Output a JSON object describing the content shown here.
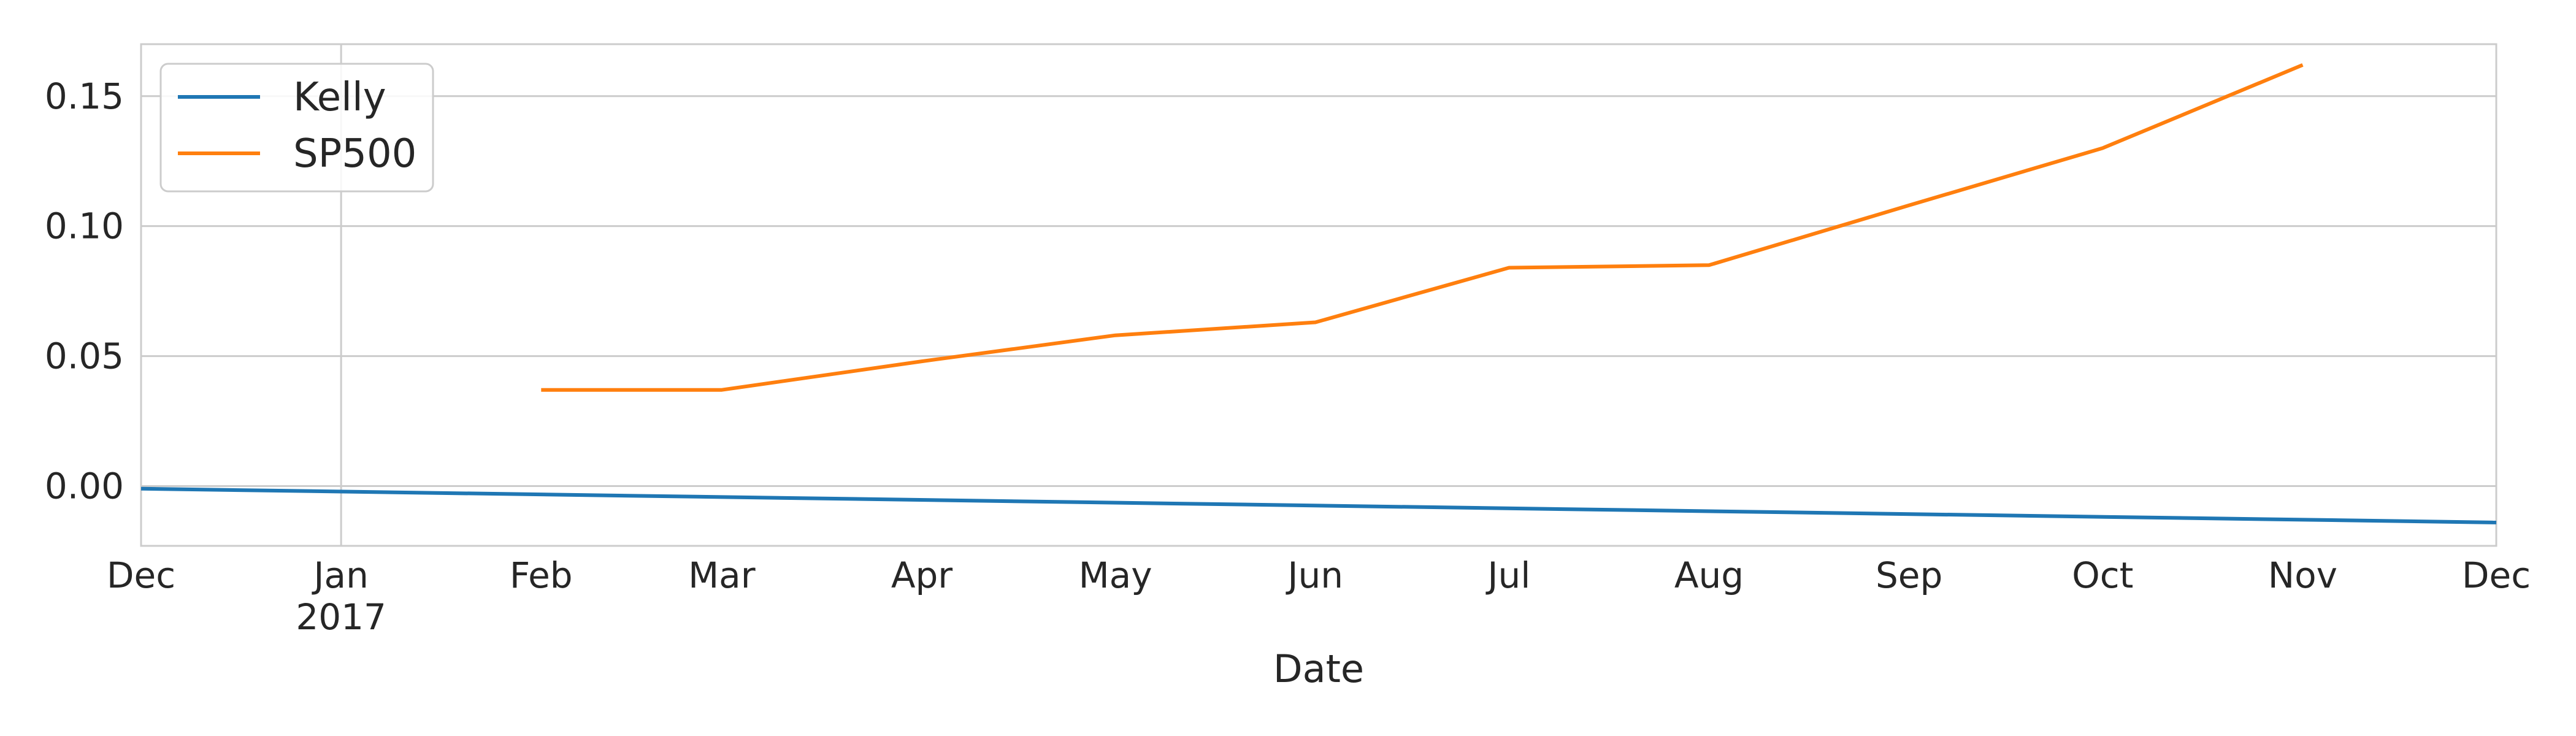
{
  "chart_data": {
    "type": "line",
    "title": "",
    "xlabel": "Date",
    "ylabel": "",
    "x_axis": {
      "type": "date",
      "range": [
        "2016-12-01",
        "2017-12-01"
      ],
      "ticks": [
        {
          "date": "2016-12-01",
          "label": "Dec",
          "sublabel": ""
        },
        {
          "date": "2017-01-01",
          "label": "Jan",
          "sublabel": "2017"
        },
        {
          "date": "2017-02-01",
          "label": "Feb",
          "sublabel": ""
        },
        {
          "date": "2017-03-01",
          "label": "Mar",
          "sublabel": ""
        },
        {
          "date": "2017-04-01",
          "label": "Apr",
          "sublabel": ""
        },
        {
          "date": "2017-05-01",
          "label": "May",
          "sublabel": ""
        },
        {
          "date": "2017-06-01",
          "label": "Jun",
          "sublabel": ""
        },
        {
          "date": "2017-07-01",
          "label": "Jul",
          "sublabel": ""
        },
        {
          "date": "2017-08-01",
          "label": "Aug",
          "sublabel": ""
        },
        {
          "date": "2017-09-01",
          "label": "Sep",
          "sublabel": ""
        },
        {
          "date": "2017-10-01",
          "label": "Oct",
          "sublabel": ""
        },
        {
          "date": "2017-11-01",
          "label": "Nov",
          "sublabel": ""
        },
        {
          "date": "2017-12-01",
          "label": "Dec",
          "sublabel": ""
        }
      ]
    },
    "y_axis": {
      "range": [
        -0.023,
        0.17
      ],
      "ticks": [
        {
          "value": 0.0,
          "label": "0.00"
        },
        {
          "value": 0.05,
          "label": "0.05"
        },
        {
          "value": 0.1,
          "label": "0.10"
        },
        {
          "value": 0.15,
          "label": "0.15"
        }
      ]
    },
    "grid": true,
    "legend": {
      "position": "top-left"
    },
    "series": [
      {
        "name": "Kelly",
        "color": "#1f77b4",
        "points": [
          {
            "x": "2016-12-01",
            "y": -0.001
          },
          {
            "x": "2017-12-01",
            "y": -0.014
          }
        ]
      },
      {
        "name": "SP500",
        "color": "#ff7f0e",
        "points": [
          {
            "x": "2017-02-01",
            "y": 0.037
          },
          {
            "x": "2017-03-01",
            "y": 0.037
          },
          {
            "x": "2017-04-01",
            "y": 0.048
          },
          {
            "x": "2017-05-01",
            "y": 0.058
          },
          {
            "x": "2017-06-01",
            "y": 0.063
          },
          {
            "x": "2017-07-01",
            "y": 0.084
          },
          {
            "x": "2017-08-01",
            "y": 0.085
          },
          {
            "x": "2017-09-01",
            "y": 0.108
          },
          {
            "x": "2017-10-01",
            "y": 0.13
          },
          {
            "x": "2017-11-01",
            "y": 0.162
          }
        ]
      }
    ]
  }
}
